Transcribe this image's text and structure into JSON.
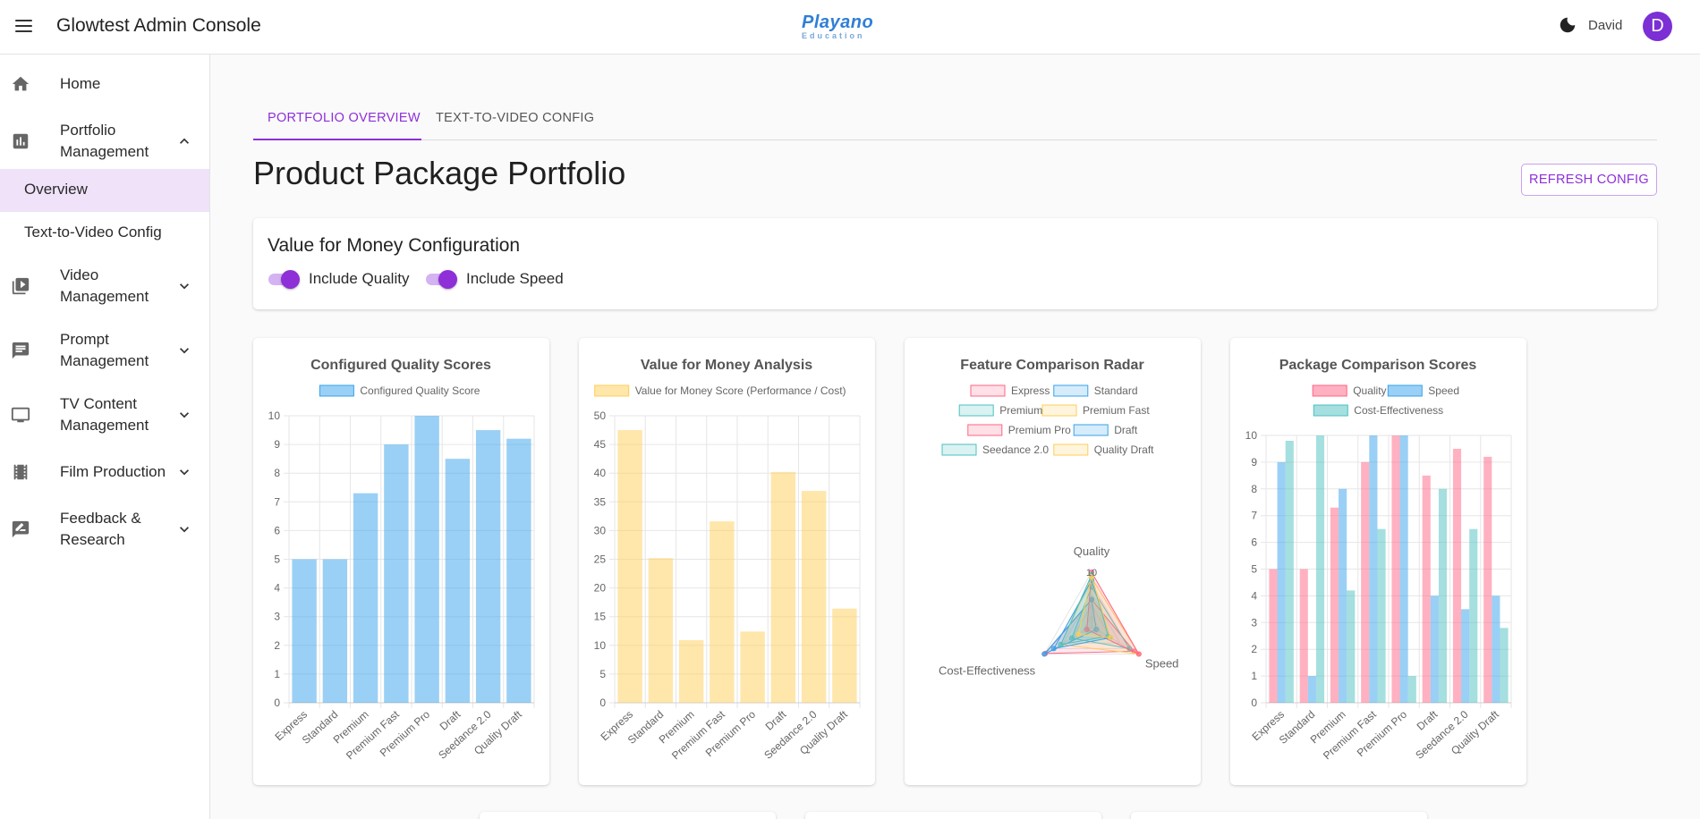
{
  "app": {
    "title": "Glowtest Admin Console",
    "logo_line1": "Playano",
    "logo_line2": "Education",
    "user_name": "David",
    "avatar_initial": "D"
  },
  "sidebar": {
    "items": [
      {
        "label": "Home",
        "icon": "home-icon"
      },
      {
        "label": "Portfolio Management",
        "icon": "bar-chart-icon",
        "expanded": true,
        "children": [
          {
            "label": "Overview",
            "active": true
          },
          {
            "label": "Text-to-Video Config"
          }
        ]
      },
      {
        "label": "Video Management",
        "icon": "video-library-icon"
      },
      {
        "label": "Prompt Management",
        "icon": "chat-icon"
      },
      {
        "label": "TV Content Management",
        "icon": "tv-icon"
      },
      {
        "label": "Film Production",
        "icon": "film-icon"
      },
      {
        "label": "Feedback & Research",
        "icon": "feedback-icon"
      }
    ]
  },
  "tabs": [
    {
      "label": "PORTFOLIO OVERVIEW",
      "active": true
    },
    {
      "label": "TEXT-TO-VIDEO CONFIG"
    }
  ],
  "page_title": "Product Package Portfolio",
  "refresh_button": "REFRESH CONFIG",
  "config": {
    "title": "Value for Money Configuration",
    "include_quality": "Include Quality",
    "include_speed": "Include Speed",
    "quality_on": true,
    "speed_on": true
  },
  "colors": {
    "accent": "#8e2fd8",
    "blue": "#36a2eb",
    "yellow": "#ffcd56",
    "pink": "#ff6384",
    "teal": "#4bc0c0"
  },
  "chart_data": [
    {
      "type": "bar",
      "title": "Configured Quality Scores",
      "categories": [
        "Express",
        "Standard",
        "Premium",
        "Premium Fast",
        "Premium Pro",
        "Draft",
        "Seedance 2.0",
        "Quality Draft"
      ],
      "series": [
        {
          "name": "Configured Quality Score",
          "values": [
            5,
            5,
            7.3,
            9,
            10,
            8.5,
            9.5,
            9.2
          ]
        }
      ],
      "ylim": [
        0,
        10
      ],
      "yticks": [
        0,
        1,
        2,
        3,
        4,
        5,
        6,
        7,
        8,
        9,
        10
      ],
      "grid": true,
      "legend": "top"
    },
    {
      "type": "bar",
      "title": "Value for Money Analysis",
      "categories": [
        "Express",
        "Standard",
        "Premium",
        "Premium Fast",
        "Premium Pro",
        "Draft",
        "Seedance 2.0",
        "Quality Draft"
      ],
      "series": [
        {
          "name": "Value for Money Score (Performance / Cost)",
          "values": [
            47.5,
            25.2,
            10.9,
            31.6,
            12.4,
            40.2,
            36.9,
            16.4
          ]
        }
      ],
      "ylim": [
        0,
        50
      ],
      "yticks": [
        0,
        5,
        10,
        15,
        20,
        25,
        30,
        35,
        40,
        45,
        50
      ],
      "grid": true,
      "legend": "top"
    },
    {
      "type": "radar",
      "title": "Feature Comparison Radar",
      "axes": [
        "Quality",
        "Speed",
        "Cost-Effectiveness"
      ],
      "rmax": 10,
      "tick_label": "10",
      "series": [
        {
          "name": "Express",
          "values": [
            5,
            9,
            9.8
          ]
        },
        {
          "name": "Standard",
          "values": [
            5,
            1,
            10
          ]
        },
        {
          "name": "Premium",
          "values": [
            7.3,
            8,
            4.2
          ]
        },
        {
          "name": "Premium Fast",
          "values": [
            9,
            10,
            6.5
          ]
        },
        {
          "name": "Premium Pro",
          "values": [
            10,
            10,
            1
          ]
        },
        {
          "name": "Draft",
          "values": [
            8.5,
            4,
            8
          ]
        },
        {
          "name": "Seedance 2.0",
          "values": [
            9.5,
            3.5,
            6.5
          ]
        },
        {
          "name": "Quality Draft",
          "values": [
            9.2,
            4,
            2.8
          ]
        }
      ],
      "legend": "top"
    },
    {
      "type": "bar",
      "title": "Package Comparison Scores",
      "categories": [
        "Express",
        "Standard",
        "Premium",
        "Premium Fast",
        "Premium Pro",
        "Draft",
        "Seedance 2.0",
        "Quality Draft"
      ],
      "series": [
        {
          "name": "Quality",
          "values": [
            5,
            5,
            7.3,
            9,
            10,
            8.5,
            9.5,
            9.2
          ]
        },
        {
          "name": "Speed",
          "values": [
            9,
            1,
            8,
            10,
            10,
            4,
            3.5,
            4
          ]
        },
        {
          "name": "Cost-Effectiveness",
          "values": [
            9.8,
            10,
            4.2,
            6.5,
            1,
            8,
            6.5,
            2.8
          ]
        }
      ],
      "ylim": [
        0,
        10
      ],
      "yticks": [
        0,
        1,
        2,
        3,
        4,
        5,
        6,
        7,
        8,
        9,
        10
      ],
      "grid": true,
      "legend": "top"
    }
  ]
}
